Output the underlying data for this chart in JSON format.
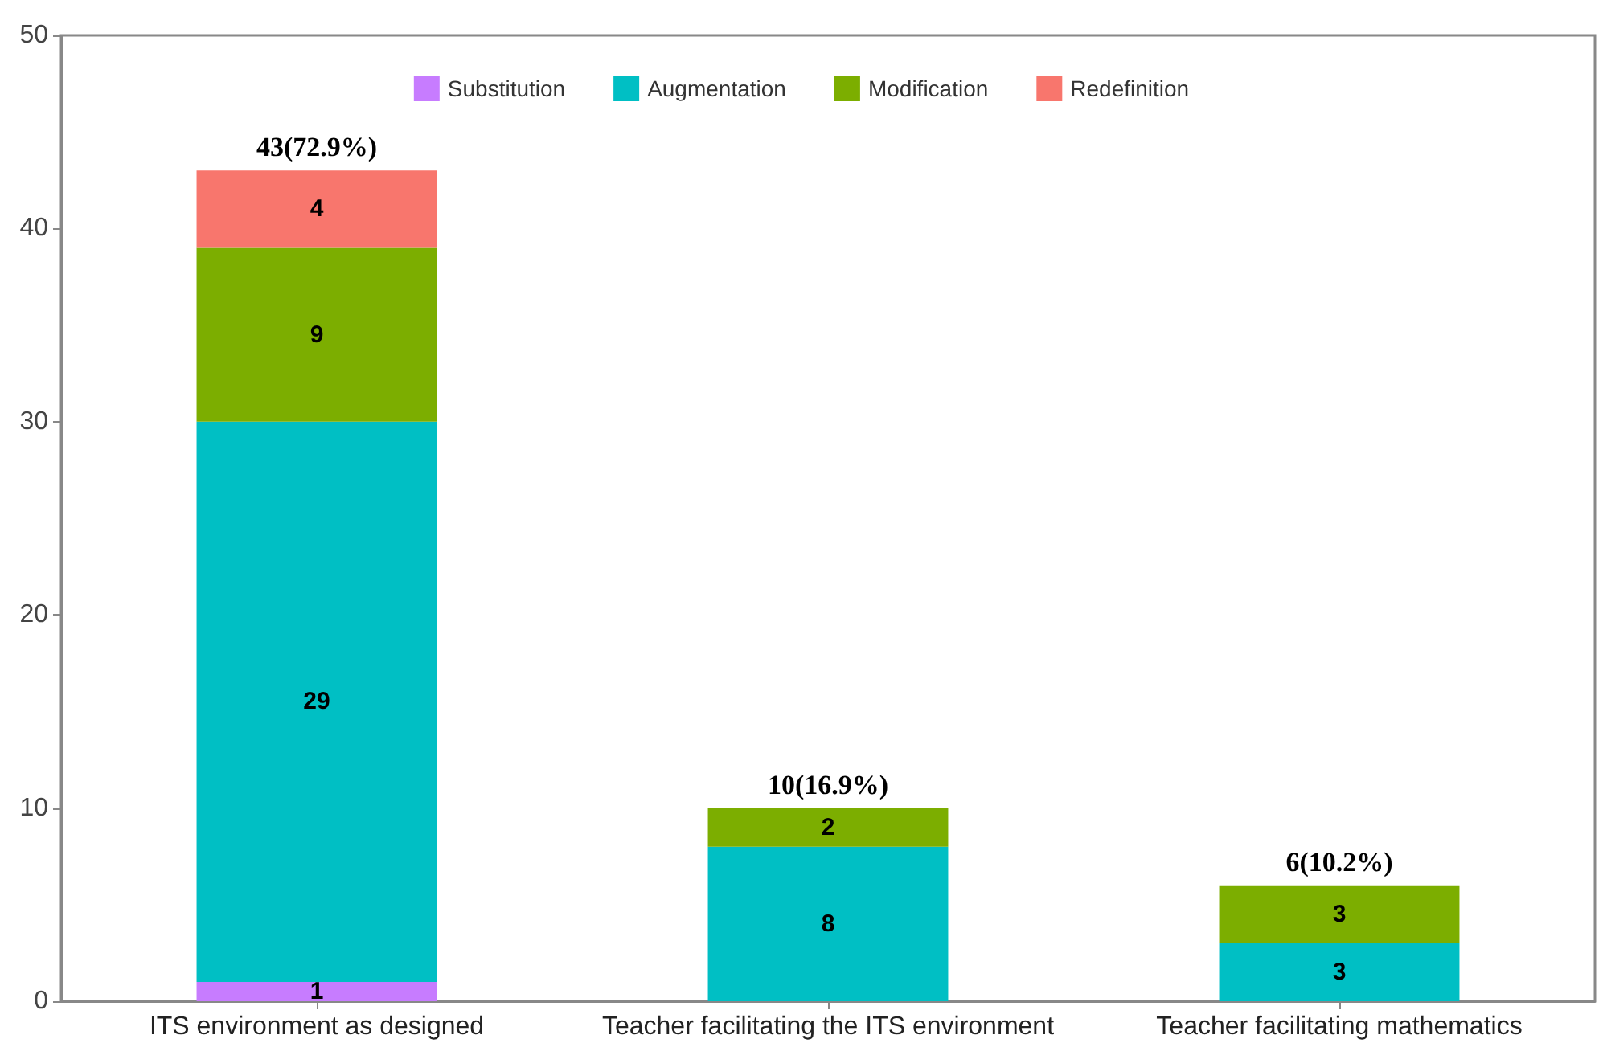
{
  "chart_data": {
    "type": "bar",
    "stacked": true,
    "categories": [
      "ITS environment as designed",
      "Teacher facilitating the ITS environment",
      "Teacher facilitating mathematics"
    ],
    "series": [
      {
        "name": "Substitution",
        "color": "#c77cff",
        "values": [
          1,
          null,
          null
        ]
      },
      {
        "name": "Augmentation",
        "color": "#00bfc4",
        "values": [
          29,
          8,
          3
        ]
      },
      {
        "name": "Modification",
        "color": "#7cae00",
        "values": [
          9,
          2,
          3
        ]
      },
      {
        "name": "Redefinition",
        "color": "#f8766d",
        "values": [
          4,
          null,
          null
        ]
      }
    ],
    "totals": [
      "43(72.9%)",
      "10(16.9%)",
      "6(10.2%)"
    ],
    "data_labels": true,
    "ylim": [
      0,
      50
    ],
    "yticks": [
      0,
      10,
      20,
      30,
      40,
      50
    ],
    "grid": false,
    "legend": "top"
  }
}
